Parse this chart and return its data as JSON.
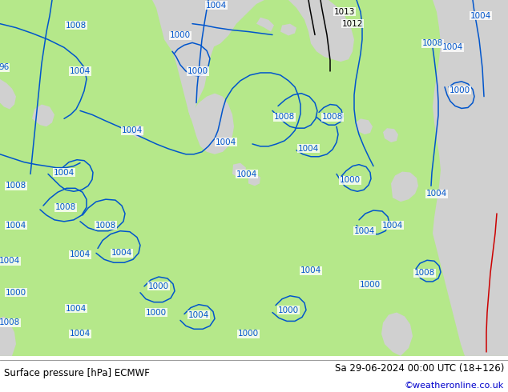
{
  "title_left": "Surface pressure [hPa] ECMWF",
  "title_right": "Sa 29-06-2024 00:00 UTC (18+126)",
  "copyright": "©weatheronline.co.uk",
  "bg_color": "#ffffff",
  "land_color": "#b5e88a",
  "sea_color": "#d0d0d0",
  "contour_color_blue": "#0055cc",
  "contour_color_black": "#000000",
  "contour_color_red": "#cc0000",
  "footer_text_color": "#000000",
  "copyright_color": "#0000cc",
  "figsize": [
    6.34,
    4.9
  ],
  "dpi": 100
}
